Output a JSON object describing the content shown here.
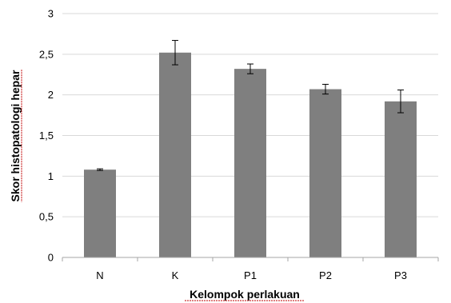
{
  "chart_data": {
    "type": "bar",
    "title": "",
    "xlabel": "Kelompok perlakuan",
    "ylabel": "Skor histopatologi hepar",
    "categories": [
      "N",
      "K",
      "P1",
      "P2",
      "P3"
    ],
    "values": [
      1.08,
      2.52,
      2.32,
      2.07,
      1.92
    ],
    "errors": [
      0.01,
      0.15,
      0.06,
      0.06,
      0.14
    ],
    "ylim": [
      0,
      3
    ],
    "yticks": [
      0,
      0.5,
      1,
      1.5,
      2,
      2.5,
      3
    ],
    "ytick_labels": [
      "0",
      "0,5",
      "1",
      "1,5",
      "2",
      "2,5",
      "3"
    ],
    "grid": true,
    "legend": "none",
    "bar_color": "#7f7f7f",
    "grid_color": "#d9d9d9"
  }
}
